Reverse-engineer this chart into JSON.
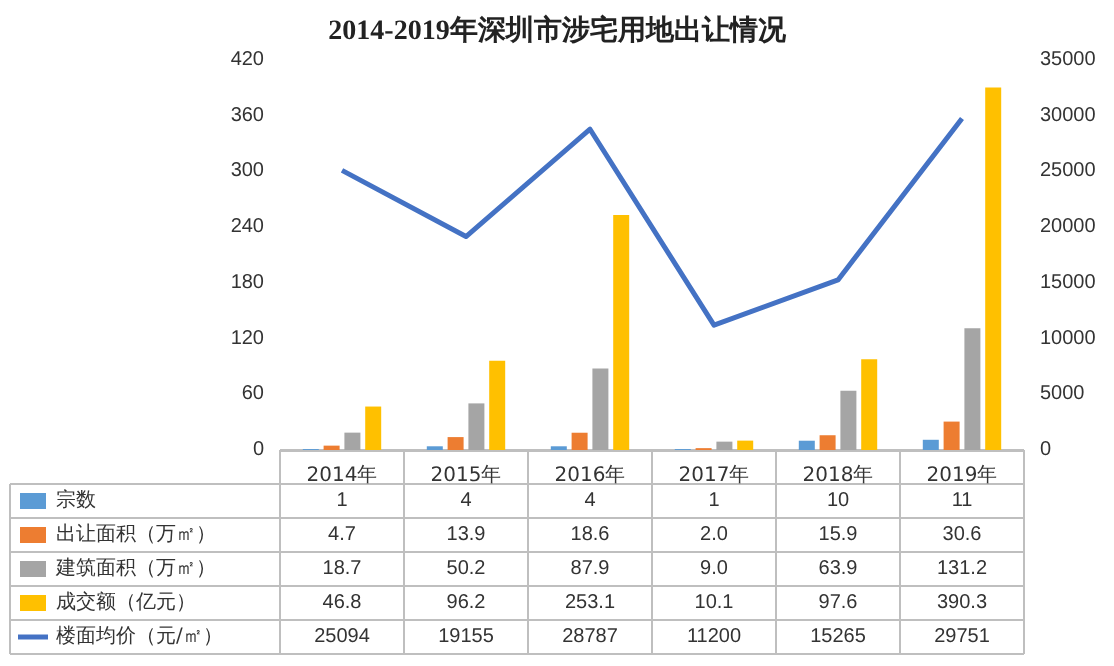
{
  "chart_data": {
    "type": "bar",
    "title": "2014-2019年深圳市涉宅用地出让情况",
    "categories": [
      "2014年",
      "2015年",
      "2016年",
      "2017年",
      "2018年",
      "2019年"
    ],
    "series": [
      {
        "name": "宗数",
        "color": "#5b9bd5",
        "values": [
          1,
          4,
          4,
          1,
          10,
          11
        ],
        "value_labels": [
          "1",
          "4",
          "4",
          "1",
          "10",
          "11"
        ]
      },
      {
        "name": "出让面积（万㎡）",
        "color": "#ed7d31",
        "values": [
          4.7,
          13.9,
          18.6,
          2.0,
          15.9,
          30.6
        ],
        "value_labels": [
          "4.7",
          "13.9",
          "18.6",
          "2.0",
          "15.9",
          "30.6"
        ]
      },
      {
        "name": "建筑面积（万㎡）",
        "color": "#a5a5a5",
        "values": [
          18.7,
          50.2,
          87.9,
          9.0,
          63.9,
          131.2
        ],
        "value_labels": [
          "18.7",
          "50.2",
          "87.9",
          "9.0",
          "63.9",
          "131.2"
        ]
      },
      {
        "name": "成交额（亿元）",
        "color": "#ffc000",
        "values": [
          46.8,
          96.2,
          253.1,
          10.1,
          97.6,
          390.3
        ],
        "value_labels": [
          "46.8",
          "96.2",
          "253.1",
          "10.1",
          "97.6",
          "390.3"
        ]
      },
      {
        "name": "楼面均价（元/㎡）",
        "type": "line",
        "axis": "y2",
        "color": "#4472c4",
        "values": [
          25094,
          19155,
          28787,
          11200,
          15265,
          29751
        ],
        "value_labels": [
          "25094",
          "19155",
          "28787",
          "11200",
          "15265",
          "29751"
        ]
      }
    ],
    "ylim": [
      0,
      420
    ],
    "yticks": [
      0,
      60,
      120,
      180,
      240,
      300,
      360,
      420
    ],
    "y2lim": [
      0,
      35000
    ],
    "y2ticks": [
      0,
      5000,
      10000,
      15000,
      20000,
      25000,
      30000,
      35000
    ],
    "legend": "bottom",
    "marker": "none"
  }
}
